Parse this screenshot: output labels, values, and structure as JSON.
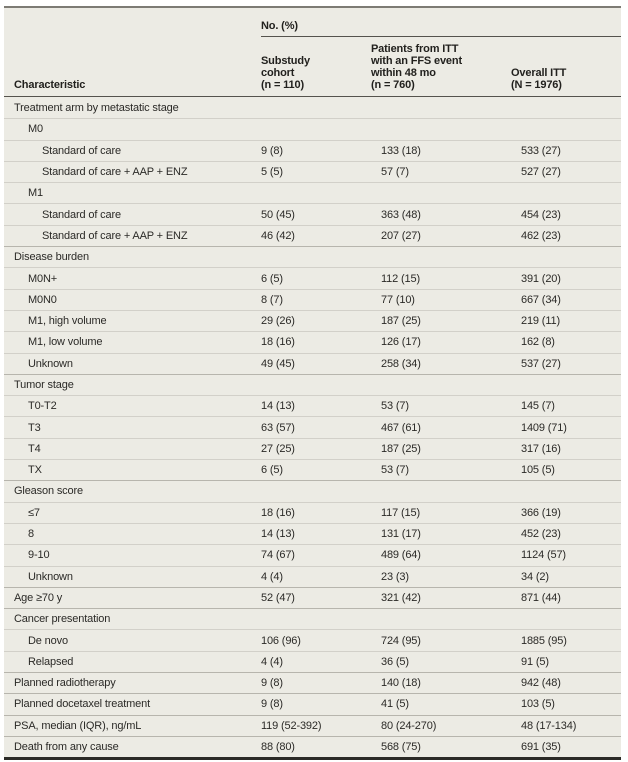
{
  "table": {
    "header": {
      "characteristic_label": "Characteristic",
      "group_label": "No. (%)",
      "columns": [
        {
          "label": "Substudy\ncohort\n(n = 110)"
        },
        {
          "label": "Patients from ITT\nwith an FFS event\nwithin 48 mo\n(n = 760)"
        },
        {
          "label": "Overall ITT\n(N = 1976)"
        }
      ]
    },
    "rows": [
      {
        "label": "Treatment arm by metastatic stage",
        "indent": 0,
        "values": [
          "",
          "",
          ""
        ]
      },
      {
        "label": "M0",
        "indent": 1,
        "values": [
          "",
          "",
          ""
        ]
      },
      {
        "label": "Standard of care",
        "indent": 2,
        "values": [
          "9 (8)",
          "133 (18)",
          "533 (27)"
        ]
      },
      {
        "label": "Standard of care + AAP + ENZ",
        "indent": 2,
        "values": [
          "5 (5)",
          "57 (7)",
          "527 (27)"
        ]
      },
      {
        "label": "M1",
        "indent": 1,
        "values": [
          "",
          "",
          ""
        ]
      },
      {
        "label": "Standard of care",
        "indent": 2,
        "values": [
          "50 (45)",
          "363 (48)",
          "454 (23)"
        ]
      },
      {
        "label": "Standard of care + AAP + ENZ",
        "indent": 2,
        "values": [
          "46 (42)",
          "207 (27)",
          "462 (23)"
        ]
      },
      {
        "label": "Disease burden",
        "indent": 0,
        "values": [
          "",
          "",
          ""
        ]
      },
      {
        "label": "M0N+",
        "indent": 1,
        "values": [
          "6 (5)",
          "112 (15)",
          "391 (20)"
        ]
      },
      {
        "label": "M0N0",
        "indent": 1,
        "values": [
          "8 (7)",
          "77 (10)",
          "667 (34)"
        ]
      },
      {
        "label": "M1, high volume",
        "indent": 1,
        "values": [
          "29 (26)",
          "187 (25)",
          "219 (11)"
        ]
      },
      {
        "label": "M1, low volume",
        "indent": 1,
        "values": [
          "18 (16)",
          "126 (17)",
          "162 (8)"
        ]
      },
      {
        "label": "Unknown",
        "indent": 1,
        "values": [
          "49 (45)",
          "258 (34)",
          "537 (27)"
        ]
      },
      {
        "label": "Tumor stage",
        "indent": 0,
        "values": [
          "",
          "",
          ""
        ]
      },
      {
        "label": "T0-T2",
        "indent": 1,
        "values": [
          "14 (13)",
          "53 (7)",
          "145 (7)"
        ]
      },
      {
        "label": "T3",
        "indent": 1,
        "values": [
          "63 (57)",
          "467 (61)",
          "1409 (71)"
        ]
      },
      {
        "label": "T4",
        "indent": 1,
        "values": [
          "27 (25)",
          "187 (25)",
          "317 (16)"
        ]
      },
      {
        "label": "TX",
        "indent": 1,
        "values": [
          "6 (5)",
          "53 (7)",
          "105 (5)"
        ]
      },
      {
        "label": "Gleason score",
        "indent": 0,
        "values": [
          "",
          "",
          ""
        ]
      },
      {
        "label": "≤7",
        "indent": 1,
        "values": [
          "18 (16)",
          "117 (15)",
          "366 (19)"
        ]
      },
      {
        "label": "8",
        "indent": 1,
        "values": [
          "14 (13)",
          "131 (17)",
          "452 (23)"
        ]
      },
      {
        "label": "9-10",
        "indent": 1,
        "values": [
          "74 (67)",
          "489 (64)",
          "1124 (57)"
        ]
      },
      {
        "label": "Unknown",
        "indent": 1,
        "values": [
          "4 (4)",
          "23 (3)",
          "34 (2)"
        ]
      },
      {
        "label": "Age ≥70 y",
        "indent": 0,
        "values": [
          "52 (47)",
          "321 (42)",
          "871 (44)"
        ]
      },
      {
        "label": "Cancer presentation",
        "indent": 0,
        "values": [
          "",
          "",
          ""
        ]
      },
      {
        "label": "De novo",
        "indent": 1,
        "values": [
          "106 (96)",
          "724 (95)",
          "1885 (95)"
        ]
      },
      {
        "label": "Relapsed",
        "indent": 1,
        "values": [
          "4 (4)",
          "36 (5)",
          "91 (5)"
        ]
      },
      {
        "label": "Planned radiotherapy",
        "indent": 0,
        "values": [
          "9 (8)",
          "140 (18)",
          "942 (48)"
        ]
      },
      {
        "label": "Planned docetaxel treatment",
        "indent": 0,
        "values": [
          "9 (8)",
          "41 (5)",
          "103 (5)"
        ]
      },
      {
        "label": "PSA, median (IQR), ng/mL",
        "indent": 0,
        "values": [
          "119 (52-392)",
          "80 (24-270)",
          "48 (17-134)"
        ]
      },
      {
        "label": "Death from any cause",
        "indent": 0,
        "values": [
          "88 (80)",
          "568 (75)",
          "691 (35)"
        ]
      }
    ],
    "colors": {
      "table_background": "#ecebe4",
      "row_separator": "#d2d0c9",
      "section_separator": "#b7b5ad",
      "header_rule": "#55534d",
      "top_border": "#7d7b74",
      "bottom_border": "#2b2a26",
      "text": "#2b2a27"
    }
  }
}
